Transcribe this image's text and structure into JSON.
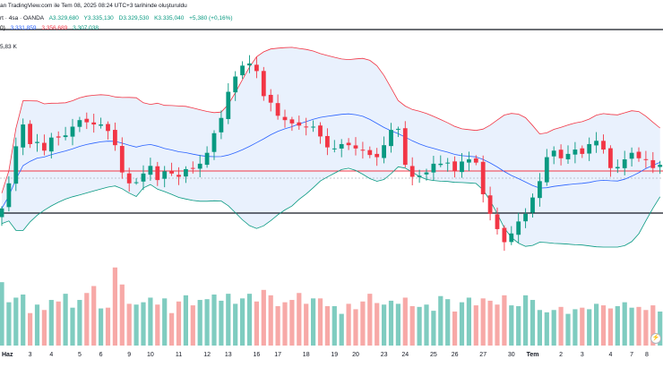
{
  "header": {
    "line1": "an TradingView.com ile Tem 08, 2025 08:24 UTC+3 tarihinde oluşturuldu",
    "symbol_fragment": "rt · 4sa · OANDA",
    "open": "A3.329,680",
    "high": "Y3.335,130",
    "low": "D3.329,530",
    "close": "K3.335,040",
    "change": "+5,380 (+0,16%)",
    "bb_prefix": "0)",
    "bb_upper": "3.331,859",
    "bb_lower": "3.356,689",
    "bb_basis": "3.307,038",
    "volume": "5,83 K"
  },
  "colors": {
    "up": "#089981",
    "down": "#f23645",
    "basis": "#2962ff",
    "upper_band": "#f23645",
    "lower_band": "#089981",
    "band_fill": "#e9f1fd",
    "vol_up": "#7fccc0",
    "vol_down": "#f7a9a7",
    "horizontal_lines": "#131722",
    "price_line": "#f23645"
  },
  "chart_data": {
    "type": "candlestick",
    "timeframe": "4sa",
    "x_tick_labels": [
      "Haz",
      "3",
      "4",
      "5",
      "6",
      "9",
      "10",
      "11",
      "12",
      "13",
      "16",
      "17",
      "18",
      "19",
      "20",
      "23",
      "24",
      "25",
      "26",
      "27",
      "30",
      "Tem",
      "2",
      "3",
      "4",
      "7",
      "8"
    ],
    "horizontal_lines": [
      "black level (upper)",
      "black level (lower)",
      "red price line"
    ],
    "indicators": [
      "Bollinger Bands",
      "Volume"
    ],
    "closes": [
      3295,
      3318,
      3352,
      3372,
      3354,
      3356,
      3348,
      3360,
      3360,
      3362,
      3370,
      3376,
      3374,
      3372,
      3372,
      3366,
      3353,
      3328,
      3318,
      3319,
      3327,
      3334,
      3321,
      3329,
      3327,
      3324,
      3331,
      3332,
      3336,
      3346,
      3364,
      3378,
      3402,
      3416,
      3426,
      3428,
      3421,
      3398,
      3392,
      3380,
      3376,
      3373,
      3371,
      3370,
      3370,
      3361,
      3351,
      3350,
      3354,
      3353,
      3350,
      3348,
      3344,
      3342,
      3353,
      3367,
      3368,
      3335,
      3324,
      3325,
      3328,
      3336,
      3336,
      3337,
      3329,
      3338,
      3340,
      3337,
      3308,
      3290,
      3276,
      3264,
      3272,
      3283,
      3290,
      3305,
      3320,
      3342,
      3348,
      3341,
      3345,
      3349,
      3345,
      3354,
      3357,
      3349,
      3332,
      3333,
      3340,
      3346,
      3341,
      3340,
      3332,
      3335
    ],
    "volumes": [
      8.2,
      5.6,
      6.2,
      6.6,
      4.2,
      5.3,
      4.6,
      5.9,
      5.7,
      6.7,
      4.9,
      5.9,
      6.8,
      7.7,
      4.8,
      4.9,
      10.1,
      7.9,
      5.4,
      5.3,
      5.6,
      6.2,
      5.3,
      6.1,
      4.2,
      5.7,
      6.5,
      5.2,
      5.9,
      6.0,
      6.6,
      5.8,
      6.7,
      5.4,
      6.1,
      6.7,
      5.7,
      7.2,
      6.5,
      5.1,
      5.6,
      5.9,
      6.8,
      5.4,
      6.1,
      6.1,
      5.1,
      5.1,
      4.1,
      5.4,
      4.7,
      5.7,
      6.7,
      5.5,
      5.3,
      5.8,
      5.4,
      6.2,
      5.1,
      5.0,
      5.3,
      4.5,
      6.4,
      6.0,
      4.4,
      5.6,
      6.2,
      5.2,
      6.1,
      5.8,
      5.3,
      6.5,
      5.2,
      5.1,
      6.5,
      5.9,
      4.6,
      4.3,
      4.6,
      5.0,
      4.1,
      4.7,
      4.9,
      4.7,
      5.4,
      5.2,
      4.8,
      5.1,
      5.6,
      4.9,
      5.0,
      4.6,
      5.2,
      4.4
    ],
    "y_range": [
      3248,
      3455
    ],
    "grid": false
  }
}
